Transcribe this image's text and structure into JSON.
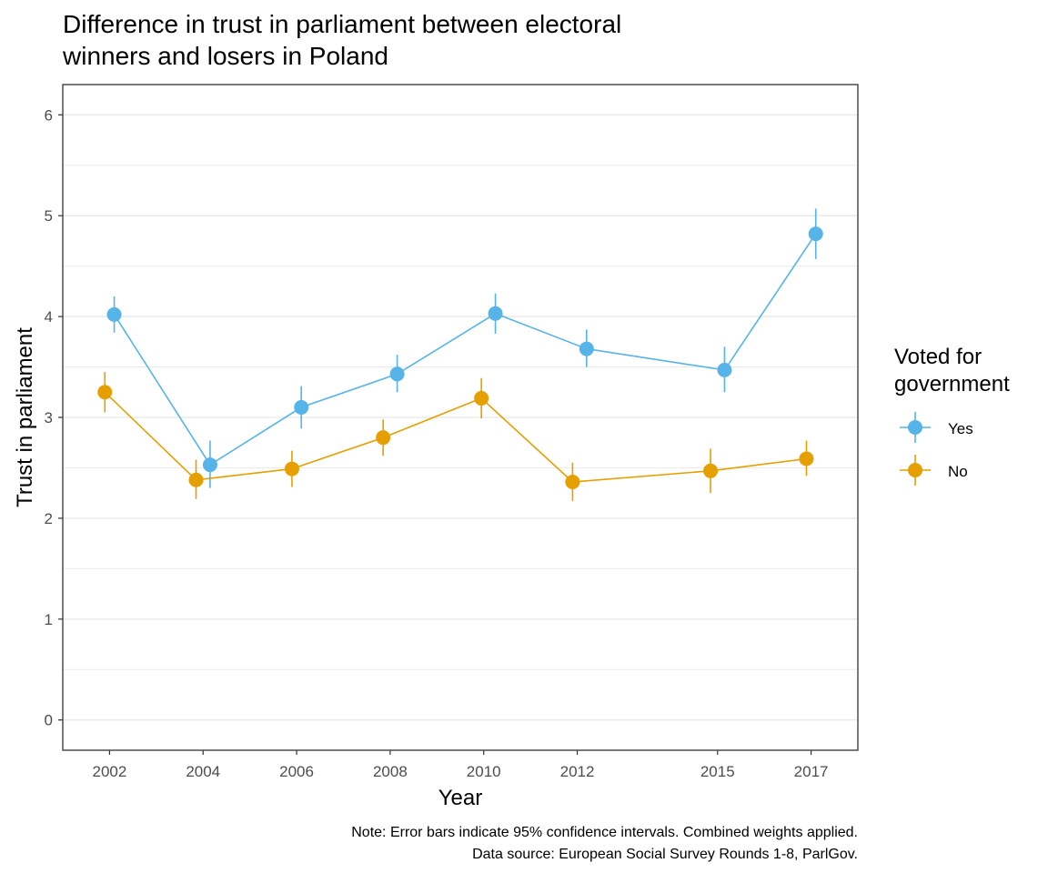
{
  "chart_data": {
    "type": "line",
    "title_lines": [
      "Difference in trust in parliament between electoral",
      "winners and losers in Poland"
    ],
    "xlabel": "Year",
    "ylabel": "Trust in parliament",
    "x_ticks": [
      "2002",
      "2004",
      "2006",
      "2008",
      "2010",
      "2012",
      "2015",
      "2017"
    ],
    "y_ticks": [
      "0",
      "1",
      "2",
      "3",
      "4",
      "5",
      "6"
    ],
    "xlim": [
      2001,
      2018
    ],
    "ylim": [
      -0.3,
      6.3
    ],
    "grid": "horizontal",
    "legend": {
      "title_lines": [
        "Voted for",
        "government"
      ],
      "position": "right"
    },
    "series": [
      {
        "name": "Yes",
        "color": "#56B4E9",
        "points": [
          {
            "x": 2002.1,
            "y": 4.02,
            "lower": 3.84,
            "upper": 4.2
          },
          {
            "x": 2004.15,
            "y": 2.53,
            "lower": 2.3,
            "upper": 2.77
          },
          {
            "x": 2006.1,
            "y": 3.1,
            "lower": 2.89,
            "upper": 3.31
          },
          {
            "x": 2008.15,
            "y": 3.43,
            "lower": 3.25,
            "upper": 3.62
          },
          {
            "x": 2010.25,
            "y": 4.03,
            "lower": 3.83,
            "upper": 4.23
          },
          {
            "x": 2012.2,
            "y": 3.68,
            "lower": 3.5,
            "upper": 3.87
          },
          {
            "x": 2015.15,
            "y": 3.47,
            "lower": 3.25,
            "upper": 3.7
          },
          {
            "x": 2017.1,
            "y": 4.82,
            "lower": 4.57,
            "upper": 5.07
          }
        ]
      },
      {
        "name": "No",
        "color": "#E69F00",
        "points": [
          {
            "x": 2001.9,
            "y": 3.25,
            "lower": 3.05,
            "upper": 3.45
          },
          {
            "x": 2003.85,
            "y": 2.38,
            "lower": 2.19,
            "upper": 2.58
          },
          {
            "x": 2005.9,
            "y": 2.49,
            "lower": 2.31,
            "upper": 2.67
          },
          {
            "x": 2007.85,
            "y": 2.8,
            "lower": 2.62,
            "upper": 2.98
          },
          {
            "x": 2009.95,
            "y": 3.19,
            "lower": 2.99,
            "upper": 3.39
          },
          {
            "x": 2011.9,
            "y": 2.36,
            "lower": 2.17,
            "upper": 2.55
          },
          {
            "x": 2014.85,
            "y": 2.47,
            "lower": 2.25,
            "upper": 2.69
          },
          {
            "x": 2016.9,
            "y": 2.59,
            "lower": 2.42,
            "upper": 2.77
          }
        ]
      }
    ],
    "caption_lines": [
      "Note: Error bars indicate 95% confidence intervals. Combined weights applied.",
      "Data source: European Social Survey Rounds 1-8, ParlGov."
    ]
  }
}
